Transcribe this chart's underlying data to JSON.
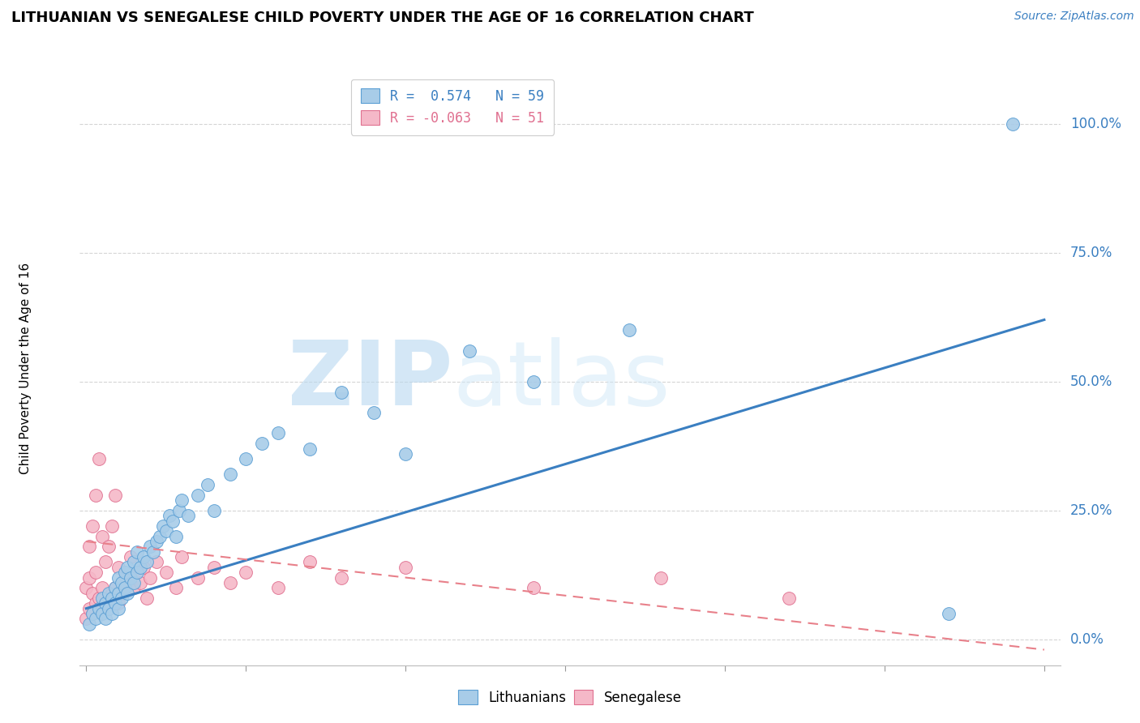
{
  "title": "LITHUANIAN VS SENEGALESE CHILD POVERTY UNDER THE AGE OF 16 CORRELATION CHART",
  "source": "Source: ZipAtlas.com",
  "ylabel": "Child Poverty Under the Age of 16",
  "yticks": [
    "0.0%",
    "25.0%",
    "50.0%",
    "75.0%",
    "100.0%"
  ],
  "ytick_vals": [
    0.0,
    0.25,
    0.5,
    0.75,
    1.0
  ],
  "xlim": [
    -0.002,
    0.305
  ],
  "ylim": [
    -0.05,
    1.1
  ],
  "legend_blue_label": "R =  0.574   N = 59",
  "legend_pink_label": "R = -0.063   N = 51",
  "blue_color": "#a8cce8",
  "pink_color": "#f5b8c8",
  "blue_edge_color": "#5b9fd4",
  "pink_edge_color": "#e07090",
  "blue_line_color": "#3a7fc1",
  "pink_line_color": "#e8808a",
  "watermark_zip": "ZIP",
  "watermark_atlas": "atlas",
  "title_fontsize": 13,
  "source_fontsize": 10,
  "axis_label_fontsize": 11,
  "tick_fontsize": 12,
  "blue_scatter_x": [
    0.001,
    0.002,
    0.003,
    0.004,
    0.005,
    0.005,
    0.006,
    0.006,
    0.007,
    0.007,
    0.008,
    0.008,
    0.009,
    0.009,
    0.01,
    0.01,
    0.01,
    0.011,
    0.011,
    0.012,
    0.012,
    0.013,
    0.013,
    0.014,
    0.015,
    0.015,
    0.016,
    0.016,
    0.017,
    0.018,
    0.019,
    0.02,
    0.021,
    0.022,
    0.023,
    0.024,
    0.025,
    0.026,
    0.027,
    0.028,
    0.029,
    0.03,
    0.032,
    0.035,
    0.038,
    0.04,
    0.045,
    0.05,
    0.055,
    0.06,
    0.07,
    0.08,
    0.09,
    0.1,
    0.12,
    0.14,
    0.17,
    0.27,
    0.29
  ],
  "blue_scatter_y": [
    0.03,
    0.05,
    0.04,
    0.06,
    0.05,
    0.08,
    0.04,
    0.07,
    0.06,
    0.09,
    0.05,
    0.08,
    0.07,
    0.1,
    0.06,
    0.09,
    0.12,
    0.08,
    0.11,
    0.1,
    0.13,
    0.09,
    0.14,
    0.12,
    0.11,
    0.15,
    0.13,
    0.17,
    0.14,
    0.16,
    0.15,
    0.18,
    0.17,
    0.19,
    0.2,
    0.22,
    0.21,
    0.24,
    0.23,
    0.2,
    0.25,
    0.27,
    0.24,
    0.28,
    0.3,
    0.25,
    0.32,
    0.35,
    0.38,
    0.4,
    0.37,
    0.48,
    0.44,
    0.36,
    0.56,
    0.5,
    0.6,
    0.05,
    1.0
  ],
  "pink_scatter_x": [
    0.0,
    0.0,
    0.001,
    0.001,
    0.001,
    0.002,
    0.002,
    0.002,
    0.003,
    0.003,
    0.003,
    0.004,
    0.004,
    0.005,
    0.005,
    0.005,
    0.006,
    0.006,
    0.007,
    0.007,
    0.008,
    0.008,
    0.009,
    0.009,
    0.01,
    0.01,
    0.011,
    0.012,
    0.013,
    0.014,
    0.015,
    0.016,
    0.017,
    0.018,
    0.019,
    0.02,
    0.022,
    0.025,
    0.028,
    0.03,
    0.035,
    0.04,
    0.045,
    0.05,
    0.06,
    0.07,
    0.08,
    0.1,
    0.14,
    0.18,
    0.22
  ],
  "pink_scatter_y": [
    0.04,
    0.1,
    0.06,
    0.12,
    0.18,
    0.05,
    0.09,
    0.22,
    0.07,
    0.13,
    0.28,
    0.08,
    0.35,
    0.06,
    0.1,
    0.2,
    0.07,
    0.15,
    0.08,
    0.18,
    0.09,
    0.22,
    0.1,
    0.28,
    0.07,
    0.14,
    0.09,
    0.12,
    0.11,
    0.16,
    0.1,
    0.13,
    0.11,
    0.14,
    0.08,
    0.12,
    0.15,
    0.13,
    0.1,
    0.16,
    0.12,
    0.14,
    0.11,
    0.13,
    0.1,
    0.15,
    0.12,
    0.14,
    0.1,
    0.12,
    0.08
  ],
  "blue_trend_x0": 0.0,
  "blue_trend_x1": 0.3,
  "blue_trend_y0": 0.06,
  "blue_trend_y1": 0.62,
  "pink_trend_x0": 0.0,
  "pink_trend_x1": 0.3,
  "pink_trend_y0": 0.19,
  "pink_trend_y1": -0.02,
  "grid_color": "#d5d5d5",
  "x_tick_positions": [
    0.0,
    0.05,
    0.1,
    0.15,
    0.2,
    0.25,
    0.3
  ]
}
